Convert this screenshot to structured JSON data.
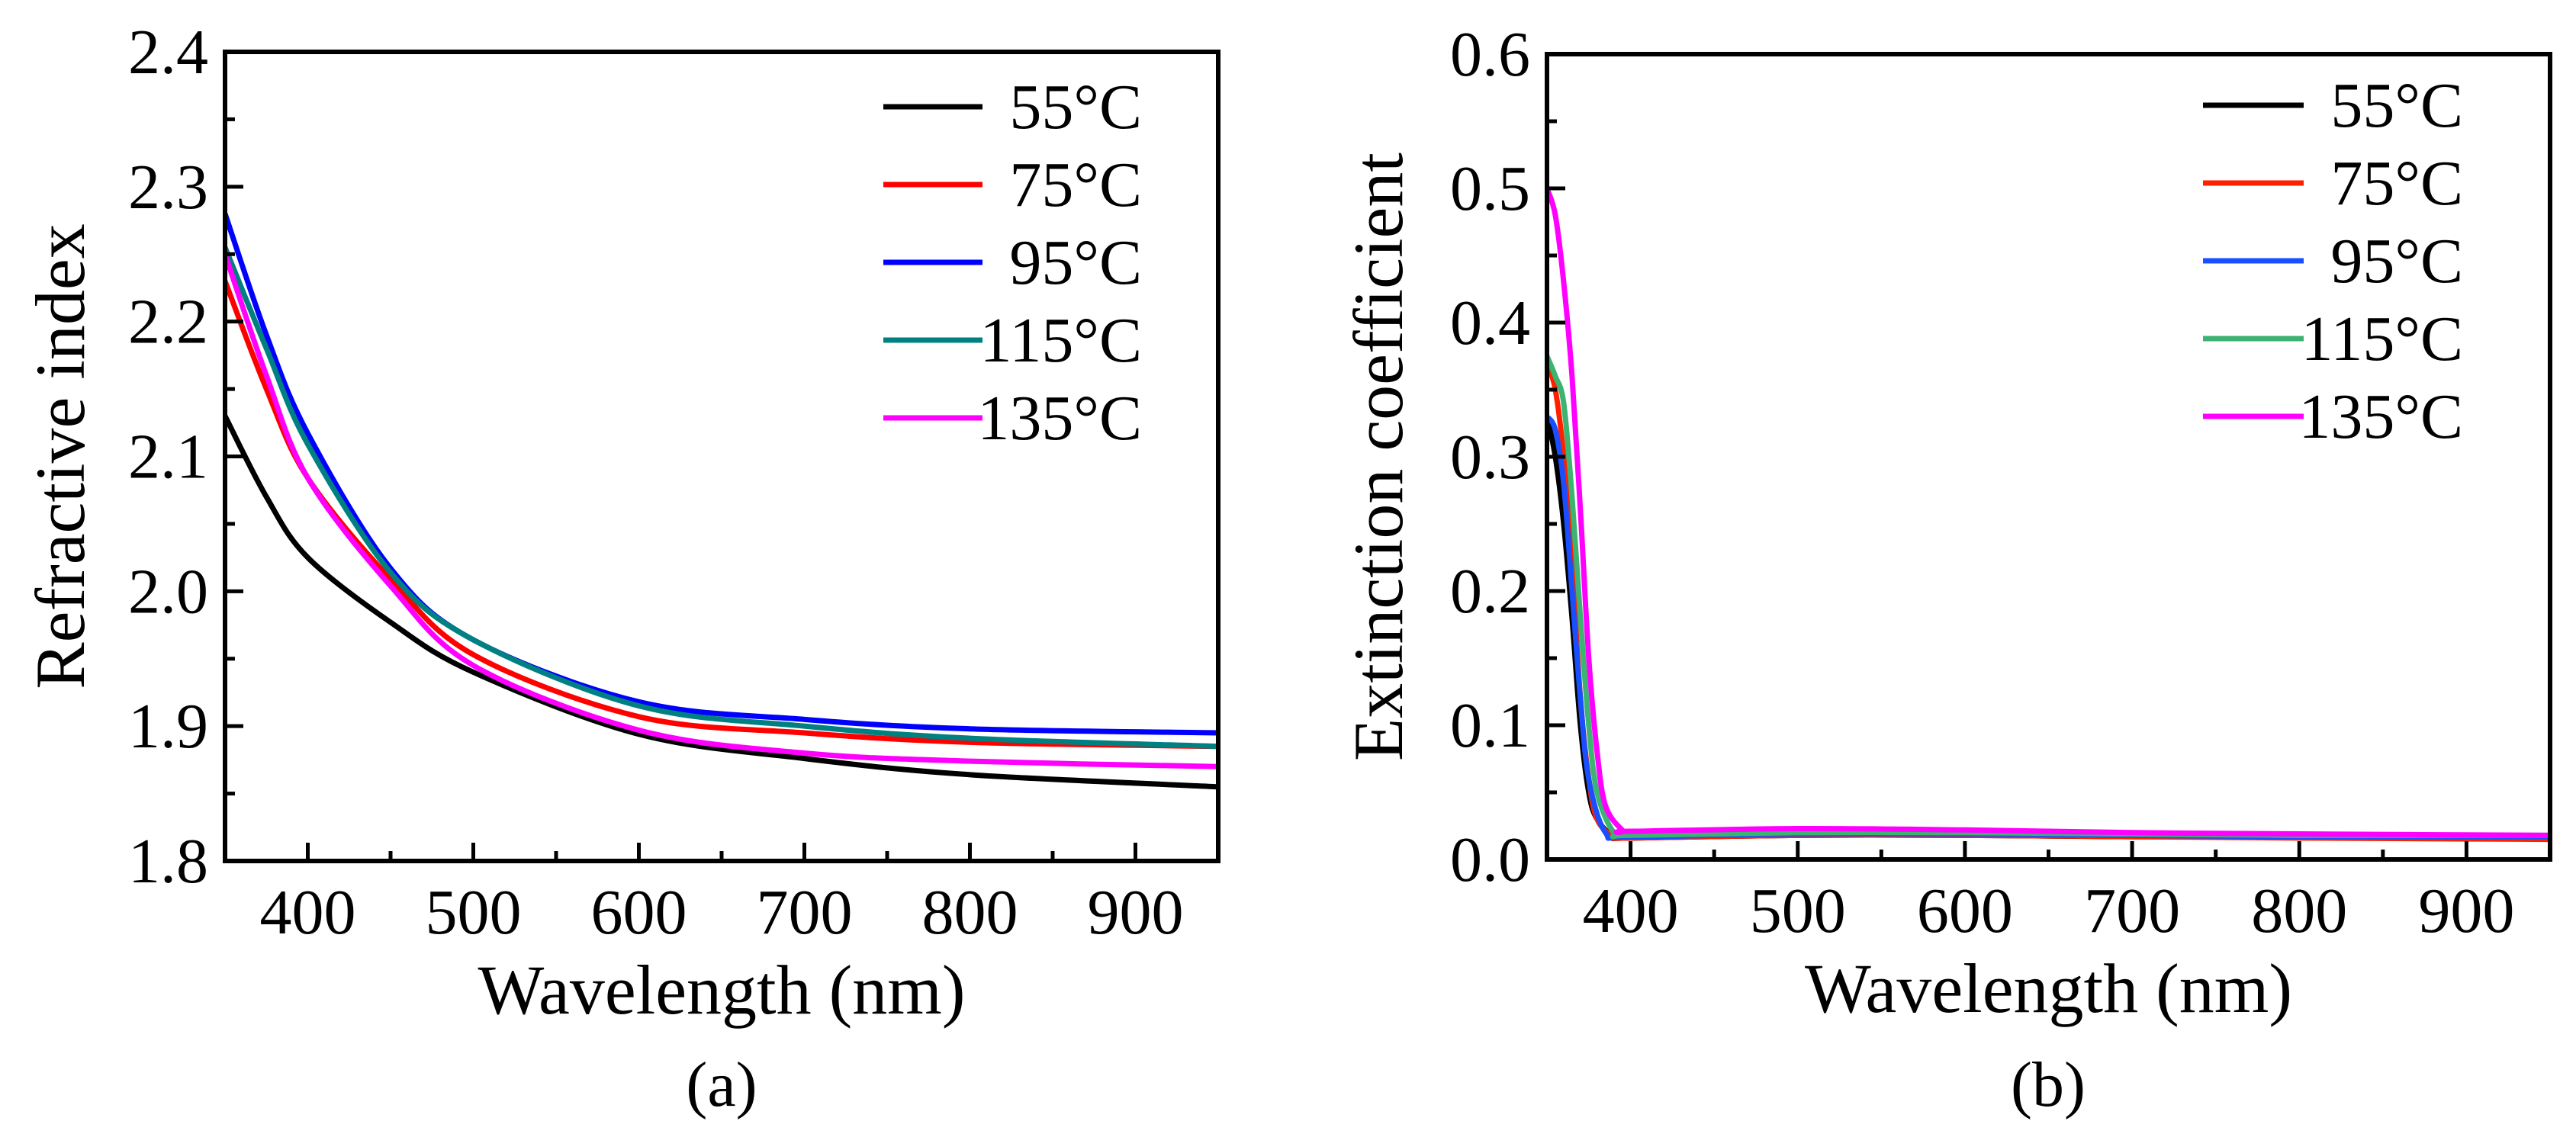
{
  "chart_data": [
    {
      "id": "a",
      "type": "line",
      "panel_label": "(a)",
      "xlabel": "Wavelength (nm)",
      "ylabel": "Refractive index",
      "xlim": [
        350,
        950
      ],
      "ylim": [
        1.8,
        2.4
      ],
      "xticks": [
        400,
        500,
        600,
        700,
        800,
        900
      ],
      "yticks": [
        1.8,
        1.9,
        2.0,
        2.1,
        2.2,
        2.3,
        2.4
      ],
      "ytick_labels": [
        "1.8",
        "1.9",
        "2.0",
        "2.1",
        "2.2",
        "2.3",
        "2.4"
      ],
      "grid": false,
      "legend_position": "top-right",
      "x": [
        350,
        375,
        400,
        450,
        500,
        600,
        700,
        800,
        950
      ],
      "series": [
        {
          "name": "55°C",
          "color": "#000000",
          "values": [
            2.13,
            2.07,
            2.025,
            1.977,
            1.94,
            1.894,
            1.876,
            1.864,
            1.855
          ]
        },
        {
          "name": "75°C",
          "color": "#ff0000",
          "values": [
            2.23,
            2.15,
            2.084,
            2.009,
            1.953,
            1.907,
            1.895,
            1.888,
            1.885
          ]
        },
        {
          "name": "95°C",
          "color": "#0000ff",
          "values": [
            2.28,
            2.19,
            2.117,
            2.017,
            1.964,
            1.918,
            1.905,
            1.898,
            1.895
          ]
        },
        {
          "name": "115°C",
          "color": "#008080",
          "values": [
            2.255,
            2.18,
            2.109,
            2.014,
            1.964,
            1.915,
            1.9,
            1.891,
            1.885
          ]
        },
        {
          "name": "135°C",
          "color": "#ff00ff",
          "values": [
            2.25,
            2.16,
            2.084,
            2.004,
            1.945,
            1.897,
            1.88,
            1.874,
            1.87
          ]
        }
      ]
    },
    {
      "id": "b",
      "type": "line",
      "panel_label": "(b)",
      "xlabel": "Wavelength (nm)",
      "ylabel": "Extinction coefficient",
      "xlim": [
        350,
        950
      ],
      "ylim": [
        0.0,
        0.6
      ],
      "xticks": [
        400,
        500,
        600,
        700,
        800,
        900
      ],
      "yticks": [
        0.0,
        0.1,
        0.2,
        0.3,
        0.4,
        0.5,
        0.6
      ],
      "ytick_labels": [
        "0.0",
        "0.1",
        "0.2",
        "0.3",
        "0.4",
        "0.5",
        "0.6"
      ],
      "grid": false,
      "legend_position": "top-right",
      "series": [
        {
          "name": "55°C",
          "color": "#000000",
          "x": [
            350,
            355,
            360,
            365,
            370,
            375,
            380,
            390,
            400,
            500,
            600,
            700,
            800,
            950
          ],
          "values": [
            0.33,
            0.3,
            0.25,
            0.18,
            0.1,
            0.05,
            0.03,
            0.017,
            0.016,
            0.018,
            0.018,
            0.017,
            0.017,
            0.016
          ]
        },
        {
          "name": "75°C",
          "color": "#ff2000",
          "x": [
            350,
            355,
            360,
            365,
            370,
            375,
            380,
            390,
            400,
            500,
            600,
            700,
            800,
            950
          ],
          "values": [
            0.37,
            0.35,
            0.3,
            0.22,
            0.12,
            0.06,
            0.03,
            0.017,
            0.016,
            0.018,
            0.018,
            0.017,
            0.016,
            0.015
          ]
        },
        {
          "name": "95°C",
          "color": "#1a4fff",
          "x": [
            350,
            355,
            360,
            365,
            370,
            375,
            385,
            400,
            500,
            600,
            700,
            800,
            950
          ],
          "values": [
            0.33,
            0.32,
            0.28,
            0.2,
            0.12,
            0.06,
            0.02,
            0.017,
            0.019,
            0.019,
            0.018,
            0.017,
            0.017
          ]
        },
        {
          "name": "115°C",
          "color": "#3cb371",
          "x": [
            350,
            355,
            360,
            365,
            370,
            375,
            380,
            390,
            400,
            500,
            600,
            700,
            800,
            950
          ],
          "values": [
            0.375,
            0.36,
            0.34,
            0.27,
            0.18,
            0.1,
            0.05,
            0.02,
            0.018,
            0.02,
            0.02,
            0.019,
            0.018,
            0.018
          ]
        },
        {
          "name": "135°C",
          "color": "#ff00ff",
          "x": [
            350,
            355,
            360,
            365,
            370,
            375,
            380,
            385,
            395,
            400,
            500,
            600,
            700,
            800,
            950
          ],
          "values": [
            0.5,
            0.48,
            0.43,
            0.36,
            0.26,
            0.15,
            0.08,
            0.04,
            0.022,
            0.021,
            0.023,
            0.022,
            0.02,
            0.019,
            0.018
          ]
        }
      ]
    }
  ]
}
